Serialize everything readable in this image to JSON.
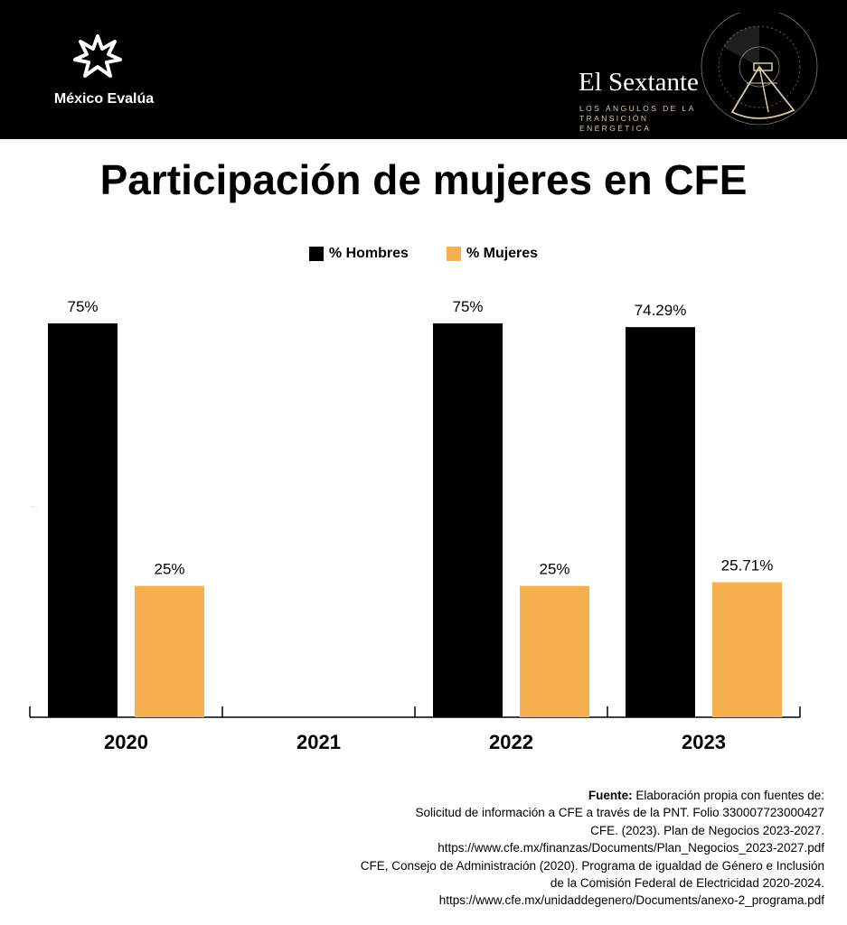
{
  "header": {
    "org_name": "México Evalúa",
    "brand_title": "El Sextante",
    "brand_subtitle_1": "LOS ÁNGULOS DE LA",
    "brand_subtitle_2": "TRANSICIÓN ENERGÉTICA",
    "bg_color": "#000000",
    "accent_color": "#d9c9a8"
  },
  "title": "Participación de mujeres en CFE",
  "chart_data": {
    "type": "bar",
    "title": "Participación de mujeres en CFE",
    "categories": [
      "2020",
      "2021",
      "2022",
      "2023"
    ],
    "series": [
      {
        "name": "% Hombres",
        "color": "#000000",
        "values": [
          75,
          null,
          75,
          74.29
        ],
        "labels": [
          "75%",
          "",
          "75%",
          "74.29%"
        ]
      },
      {
        "name": "% Mujeres",
        "color": "#f6b04f",
        "values": [
          25,
          null,
          25,
          25.71
        ],
        "labels": [
          "25%",
          "",
          "25%",
          "25.71%"
        ]
      }
    ],
    "ylim": [
      0,
      75
    ],
    "xlabel": "",
    "ylabel": "",
    "legend": "top-center",
    "grid": false
  },
  "source": {
    "label": "Fuente:",
    "line1": "Elaboración propia con fuentes de:",
    "line2": "Solicitud de información a CFE a través de la PNT. Folio 330007723000427",
    "line3": "CFE. (2023). Plan de Negocios 2023-2027.",
    "line4": "https://www.cfe.mx/finanzas/Documents/Plan_Negocios_2023-2027.pdf",
    "line5": "CFE, Consejo de Administración (2020). Programa de igualdad de Género e Inclusión",
    "line6": "de la Comisión Federal de Electricidad 2020-2024.",
    "line7": "https://www.cfe.mx/unidaddegenero/Documents/anexo-2_programa.pdf"
  }
}
